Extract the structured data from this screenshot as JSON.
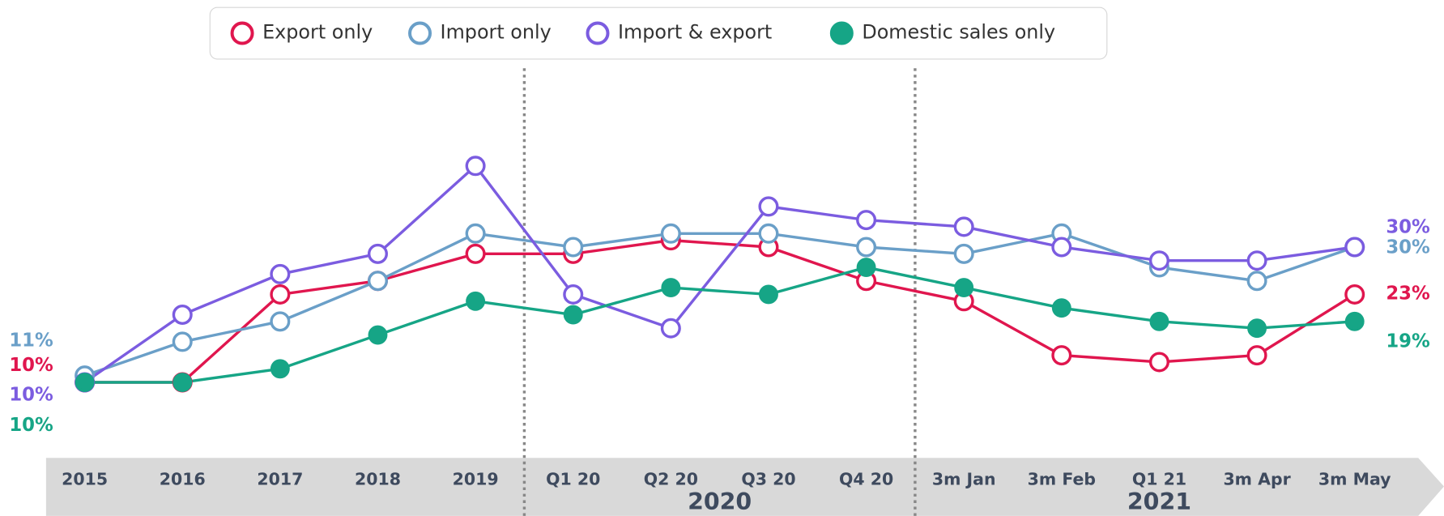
{
  "chart_data": {
    "type": "line",
    "categories": [
      "2015",
      "2016",
      "2017",
      "2018",
      "2019",
      "Q1 20",
      "Q2 20",
      "Q3 20",
      "Q4 20",
      "3m Jan",
      "3m Feb",
      "Q1 21",
      "3m Apr",
      "3m May"
    ],
    "groups": [
      {
        "label": "2020",
        "first": 5,
        "last": 8
      },
      {
        "label": "2021",
        "first": 9,
        "last": 13
      }
    ],
    "series": [
      {
        "name": "Export only",
        "color": "#e0164e",
        "marker": "hollow",
        "values": [
          10,
          10,
          23,
          25,
          29,
          29,
          31,
          30,
          25,
          22,
          14,
          13,
          14,
          23
        ],
        "start_label": "10%",
        "end_label": "23%"
      },
      {
        "name": "Import only",
        "color": "#6a9fc8",
        "marker": "hollow",
        "values": [
          11,
          16,
          19,
          25,
          32,
          30,
          32,
          32,
          30,
          29,
          32,
          27,
          25,
          30
        ],
        "start_label": "11%",
        "end_label": "30%"
      },
      {
        "name": "Import & export",
        "color": "#7b5ce0",
        "marker": "hollow",
        "values": [
          10,
          20,
          26,
          29,
          42,
          23,
          18,
          36,
          34,
          33,
          30,
          28,
          28,
          30
        ],
        "start_label": "10%",
        "end_label": "30%"
      },
      {
        "name": "Domestic sales only",
        "color": "#16a586",
        "marker": "filled",
        "values": [
          10,
          10,
          12,
          17,
          22,
          20,
          24,
          23,
          27,
          24,
          21,
          19,
          18,
          19
        ],
        "start_label": "10%",
        "end_label": "19%"
      }
    ],
    "legend": "top"
  }
}
